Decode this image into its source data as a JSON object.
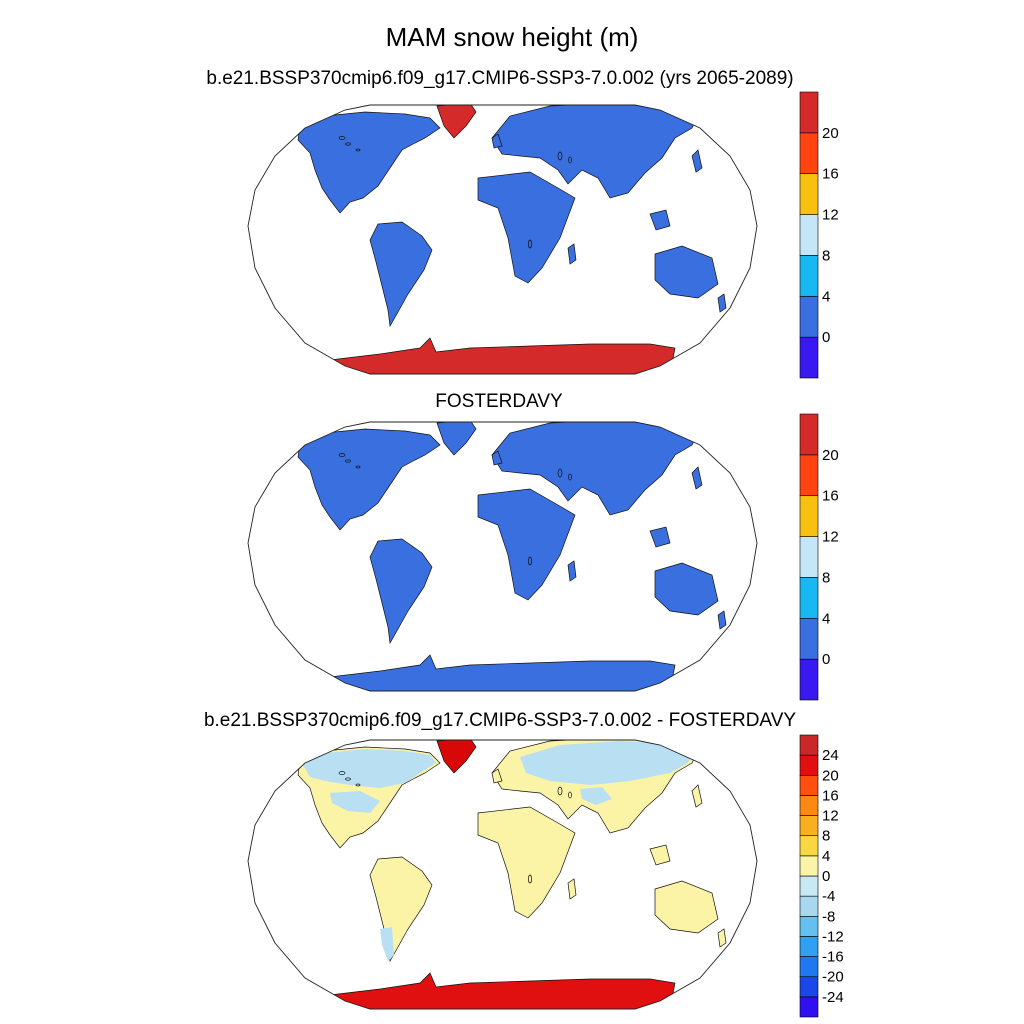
{
  "title": "MAM snow height (m)",
  "panels": [
    {
      "id": "panel1",
      "title": "b.e21.BSSP370cmip6.f09_g17.CMIP6-SSP3-7.0.002 (yrs 2065-2089)",
      "land_color": "#3a6fe0",
      "greenland_color": "#d42a2a",
      "antarctica_color": "#d42a2a",
      "colorbar": {
        "colors": [
          "#3a18f0",
          "#3a6fe0",
          "#18b8f0",
          "#c4e6f6",
          "#f8c010",
          "#ff4410",
          "#d42a2a"
        ],
        "labels": [
          "0",
          "4",
          "8",
          "12",
          "16",
          "20"
        ]
      }
    },
    {
      "id": "panel2",
      "title": "FOSTERDAVY",
      "land_color": "#3a6fe0",
      "greenland_color": "#3a6fe0",
      "antarctica_color": "#3a6fe0",
      "colorbar": {
        "colors": [
          "#3a18f0",
          "#3a6fe0",
          "#18b8f0",
          "#c4e6f6",
          "#f8c010",
          "#ff4410",
          "#d42a2a"
        ],
        "labels": [
          "0",
          "4",
          "8",
          "12",
          "16",
          "20"
        ]
      }
    },
    {
      "id": "panel3",
      "title": "b.e21.BSSP370cmip6.f09_g17.CMIP6-SSP3-7.0.002 - FOSTERDAVY",
      "land_color": "#fbf3a6",
      "greenland_color": "#d80808",
      "antarctica_color": "#e01010",
      "north_band_color": "#b8e0f2",
      "colorbar": {
        "colors": [
          "#3010f0",
          "#1a48e8",
          "#2078f0",
          "#30a0f0",
          "#64c0ee",
          "#a8d8f0",
          "#c8e8f4",
          "#fbf3a6",
          "#f8d840",
          "#f8b020",
          "#ff8810",
          "#ff5010",
          "#e01010",
          "#c82828"
        ],
        "labels": [
          "-24",
          "-20",
          "-16",
          "-12",
          "-8",
          "-4",
          "0",
          "4",
          "8",
          "12",
          "16",
          "20",
          "24"
        ]
      }
    }
  ]
}
